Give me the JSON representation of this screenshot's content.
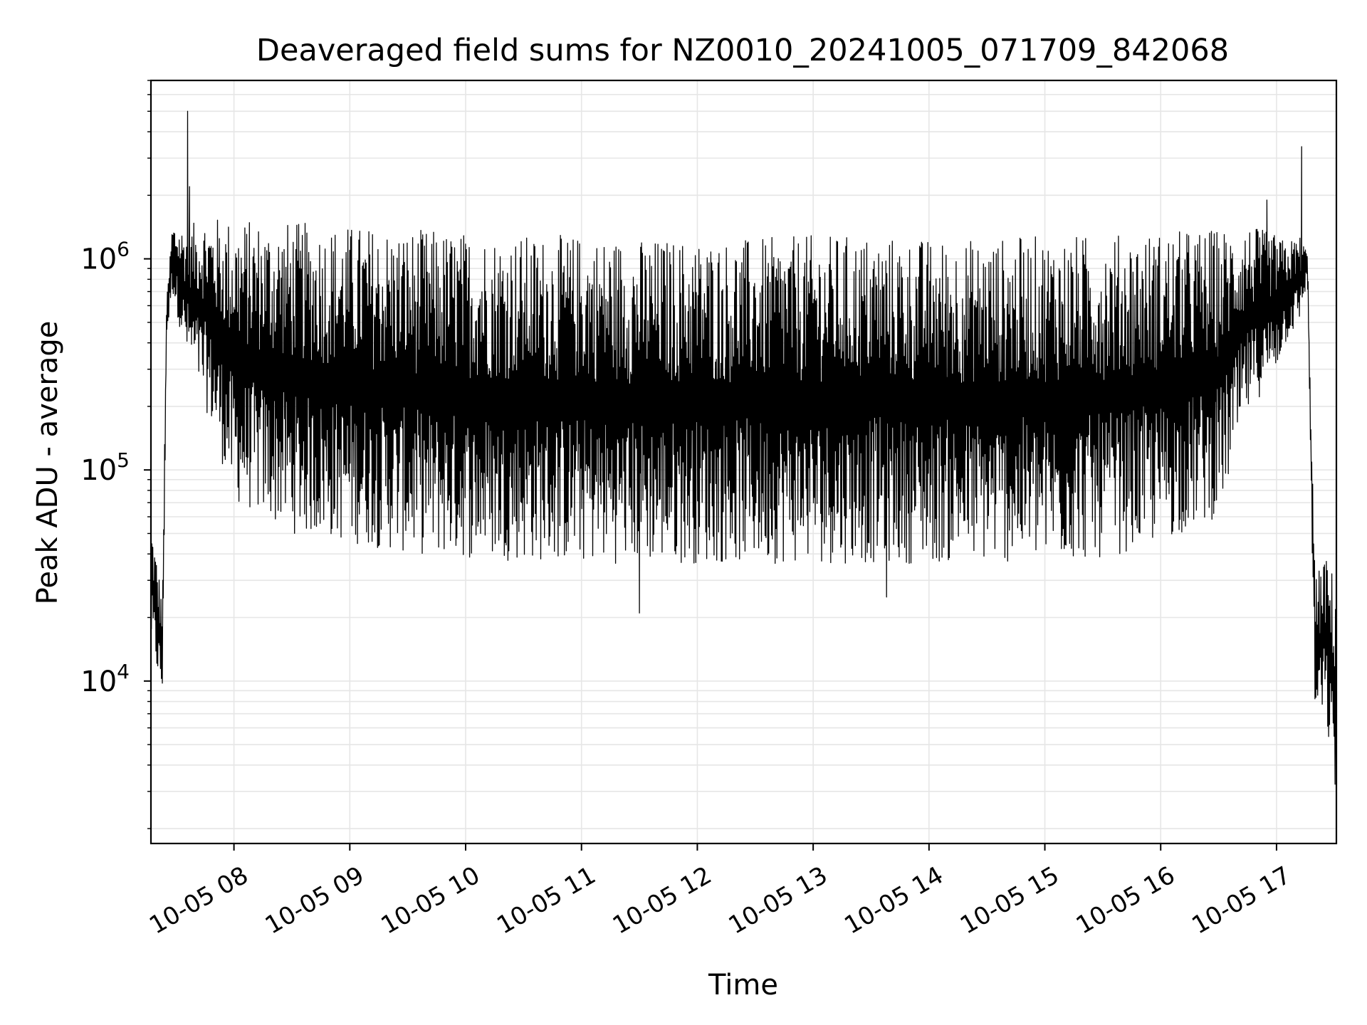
{
  "chart_data": {
    "type": "line",
    "title": "Deaveraged field sums for NZ0010_20241005_071709_842068",
    "xlabel": "Time",
    "ylabel": "Peak ADU - average",
    "xscale": "time",
    "yscale": "log",
    "xlim": [
      "2024-10-05 07:17",
      "2024-10-05 17:31"
    ],
    "ylim": [
      1700,
      7000000
    ],
    "x_ticks": [
      "2024-10-05 08:00",
      "2024-10-05 09:00",
      "2024-10-05 10:00",
      "2024-10-05 11:00",
      "2024-10-05 12:00",
      "2024-10-05 13:00",
      "2024-10-05 14:00",
      "2024-10-05 15:00",
      "2024-10-05 16:00",
      "2024-10-05 17:00"
    ],
    "x_tick_labels": [
      "10-05 08",
      "10-05 09",
      "10-05 10",
      "10-05 11",
      "10-05 12",
      "10-05 13",
      "10-05 14",
      "10-05 15",
      "10-05 16",
      "10-05 17"
    ],
    "y_ticks": [
      {
        "value": 10000,
        "base": "10",
        "exp": "4"
      },
      {
        "value": 100000,
        "base": "10",
        "exp": "5"
      },
      {
        "value": 1000000,
        "base": "10",
        "exp": "6"
      }
    ],
    "grid": true,
    "line_color": "#000000",
    "grid_color": "#e6e6e6",
    "envelope": {
      "x": [
        "2024-10-05 07:17",
        "2024-10-05 07:23",
        "2024-10-05 07:25",
        "2024-10-05 07:28",
        "2024-10-05 07:35",
        "2024-10-05 07:45",
        "2024-10-05 08:00",
        "2024-10-05 08:30",
        "2024-10-05 09:00",
        "2024-10-05 09:30",
        "2024-10-05 10:00",
        "2024-10-05 10:30",
        "2024-10-05 11:00",
        "2024-10-05 11:30",
        "2024-10-05 12:00",
        "2024-10-05 12:30",
        "2024-10-05 13:00",
        "2024-10-05 13:30",
        "2024-10-05 14:00",
        "2024-10-05 14:30",
        "2024-10-05 15:00",
        "2024-10-05 15:30",
        "2024-10-05 16:00",
        "2024-10-05 16:30",
        "2024-10-05 16:45",
        "2024-10-05 17:00",
        "2024-10-05 17:05",
        "2024-10-05 17:12",
        "2024-10-05 17:16",
        "2024-10-05 17:20",
        "2024-10-05 17:25",
        "2024-10-05 17:31"
      ],
      "upper": [
        60000,
        25000,
        600000,
        1500000,
        1400000,
        1600000,
        1550000,
        1500000,
        1450000,
        1400000,
        1350000,
        1300000,
        1300000,
        1250000,
        1250000,
        1250000,
        1300000,
        1300000,
        1250000,
        1250000,
        1300000,
        1300000,
        1350000,
        1400000,
        1450000,
        1300000,
        1200000,
        1300000,
        1100000,
        30000,
        40000,
        30000
      ],
      "lower": [
        15000,
        8000,
        400000,
        700000,
        350000,
        200000,
        70000,
        50000,
        45000,
        40000,
        38000,
        37000,
        36000,
        36000,
        36000,
        36000,
        36000,
        36000,
        36000,
        36000,
        36000,
        38000,
        45000,
        60000,
        180000,
        300000,
        400000,
        500000,
        800000,
        6000,
        7000,
        2500
      ]
    },
    "peaks": [
      {
        "x": "2024-10-05 07:36",
        "y": 5000000
      },
      {
        "x": "2024-10-05 07:37",
        "y": 2200000
      },
      {
        "x": "2024-10-05 11:30",
        "y": 21000
      },
      {
        "x": "2024-10-05 13:38",
        "y": 25000
      },
      {
        "x": "2024-10-05 16:55",
        "y": 1900000
      },
      {
        "x": "2024-10-05 17:13",
        "y": 3400000
      },
      {
        "x": "2024-10-05 17:31",
        "y": 2500
      }
    ],
    "note_series": "dense rapidly oscillating single series"
  }
}
